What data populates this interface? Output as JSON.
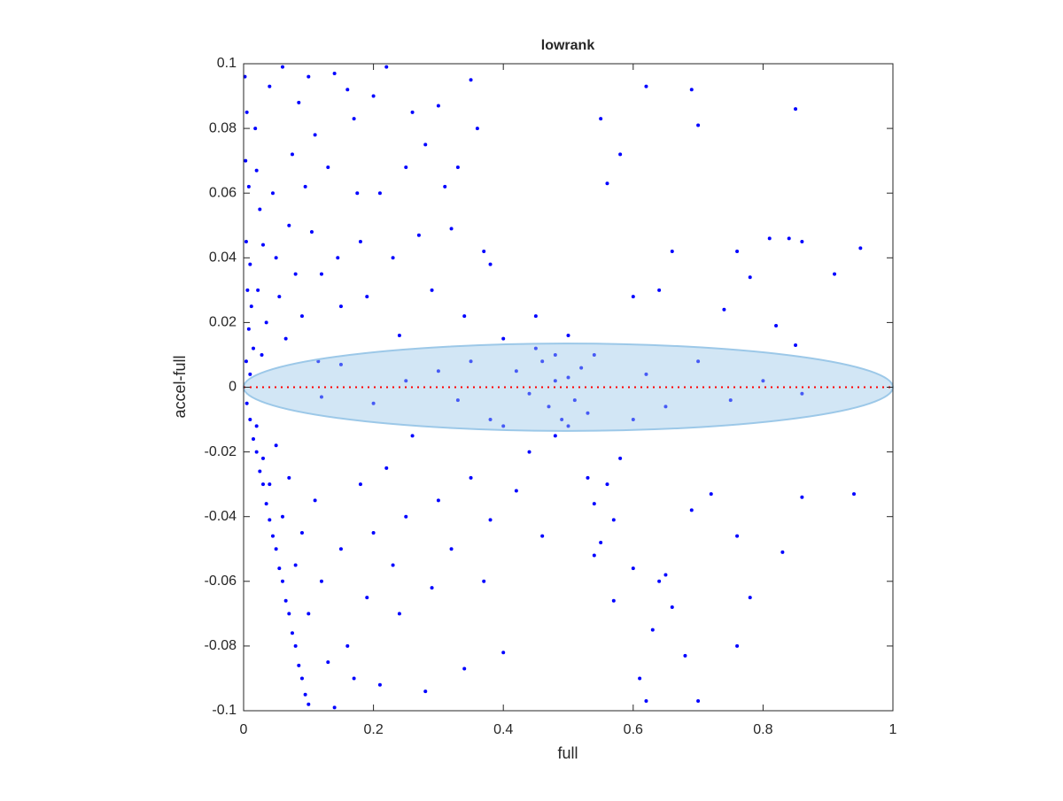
{
  "chart_data": {
    "type": "scatter",
    "title": "lowrank",
    "xlabel": "full",
    "ylabel": "accel-full",
    "xlim": [
      0,
      1
    ],
    "ylim": [
      -0.1,
      0.1
    ],
    "xticks": [
      0,
      0.2,
      0.4,
      0.6,
      0.8,
      1
    ],
    "yticks": [
      -0.1,
      -0.08,
      -0.06,
      -0.04,
      -0.02,
      0,
      0.02,
      0.04,
      0.06,
      0.08,
      0.1
    ],
    "grid": false,
    "series": [
      {
        "color": "#0000ff",
        "x": [
          0.005,
          0.01,
          0.015,
          0.02,
          0.025,
          0.03,
          0.035,
          0.04,
          0.045,
          0.05,
          0.055,
          0.06,
          0.065,
          0.07,
          0.075,
          0.08,
          0.085,
          0.09,
          0.095,
          0.1,
          0.002,
          0.005,
          0.003,
          0.008,
          0.004,
          0.01,
          0.006,
          0.012,
          0.008,
          0.015,
          0.004,
          0.01,
          0.02,
          0.018,
          0.025,
          0.03,
          0.022,
          0.035,
          0.028,
          0.04,
          0.045,
          0.05,
          0.055,
          0.06,
          0.065,
          0.07,
          0.075,
          0.08,
          0.085,
          0.09,
          0.095,
          0.1,
          0.105,
          0.11,
          0.115,
          0.12,
          0.13,
          0.14,
          0.145,
          0.15,
          0.16,
          0.17,
          0.175,
          0.18,
          0.19,
          0.2,
          0.21,
          0.22,
          0.23,
          0.24,
          0.25,
          0.26,
          0.27,
          0.28,
          0.29,
          0.3,
          0.31,
          0.32,
          0.33,
          0.34,
          0.35,
          0.36,
          0.37,
          0.38,
          0.4,
          0.45,
          0.5,
          0.55,
          0.56,
          0.58,
          0.6,
          0.62,
          0.64,
          0.66,
          0.69,
          0.7,
          0.74,
          0.76,
          0.78,
          0.81,
          0.84,
          0.85,
          0.86,
          0.91,
          0.95,
          0.82,
          0.85,
          0.42,
          0.44,
          0.46,
          0.47,
          0.48,
          0.49,
          0.5,
          0.51,
          0.52,
          0.53,
          0.48,
          0.5,
          0.45,
          0.54,
          0.3,
          0.33,
          0.35,
          0.38,
          0.25,
          0.2,
          0.15,
          0.12,
          0.62,
          0.65,
          0.7,
          0.75,
          0.8,
          0.86,
          0.6,
          0.4,
          0.02,
          0.03,
          0.04,
          0.05,
          0.06,
          0.07,
          0.08,
          0.09,
          0.1,
          0.11,
          0.12,
          0.13,
          0.14,
          0.15,
          0.16,
          0.17,
          0.18,
          0.19,
          0.2,
          0.21,
          0.22,
          0.23,
          0.24,
          0.25,
          0.26,
          0.28,
          0.29,
          0.3,
          0.32,
          0.34,
          0.35,
          0.37,
          0.38,
          0.4,
          0.42,
          0.44,
          0.46,
          0.48,
          0.53,
          0.54,
          0.55,
          0.56,
          0.57,
          0.58,
          0.6,
          0.61,
          0.62,
          0.63,
          0.64,
          0.65,
          0.66,
          0.68,
          0.69,
          0.7,
          0.72,
          0.76,
          0.76,
          0.78,
          0.83,
          0.86,
          0.94,
          0.54,
          0.57
        ],
        "values": [
          -0.005,
          -0.01,
          -0.016,
          -0.02,
          -0.026,
          -0.03,
          -0.036,
          -0.041,
          -0.046,
          -0.05,
          -0.056,
          -0.06,
          -0.066,
          -0.07,
          -0.076,
          -0.08,
          -0.086,
          -0.09,
          -0.095,
          -0.098,
          0.096,
          0.085,
          0.07,
          0.062,
          0.045,
          0.038,
          0.03,
          0.025,
          0.018,
          0.012,
          0.008,
          0.004,
          0.067,
          0.08,
          0.055,
          0.044,
          0.03,
          0.02,
          0.01,
          0.093,
          0.06,
          0.04,
          0.028,
          0.099,
          0.015,
          0.05,
          0.072,
          0.035,
          0.088,
          0.022,
          0.062,
          0.096,
          0.048,
          0.078,
          0.008,
          0.035,
          0.068,
          0.097,
          0.04,
          0.025,
          0.092,
          0.083,
          0.06,
          0.045,
          0.028,
          0.09,
          0.06,
          0.099,
          0.04,
          0.016,
          0.068,
          0.085,
          0.047,
          0.075,
          0.03,
          0.087,
          0.062,
          0.049,
          0.068,
          0.022,
          0.095,
          0.08,
          0.042,
          0.038,
          0.015,
          0.022,
          0.016,
          0.083,
          0.063,
          0.072,
          0.028,
          0.093,
          0.03,
          0.042,
          0.092,
          0.081,
          0.024,
          0.042,
          0.034,
          0.046,
          0.046,
          0.086,
          0.045,
          0.035,
          0.043,
          0.019,
          0.013,
          0.005,
          -0.002,
          0.008,
          -0.006,
          0.01,
          -0.01,
          0.003,
          -0.004,
          0.006,
          -0.008,
          0.002,
          -0.012,
          0.012,
          0.01,
          0.005,
          -0.004,
          0.008,
          -0.01,
          0.002,
          -0.005,
          0.007,
          -0.003,
          0.004,
          -0.006,
          0.008,
          -0.004,
          0.002,
          -0.002,
          -0.01,
          -0.012,
          -0.012,
          -0.022,
          -0.03,
          -0.018,
          -0.04,
          -0.028,
          -0.055,
          -0.045,
          -0.07,
          -0.035,
          -0.06,
          -0.085,
          -0.099,
          -0.05,
          -0.08,
          -0.09,
          -0.03,
          -0.065,
          -0.045,
          -0.092,
          -0.025,
          -0.055,
          -0.07,
          -0.04,
          -0.015,
          -0.094,
          -0.062,
          -0.035,
          -0.05,
          -0.087,
          -0.028,
          -0.06,
          -0.041,
          -0.082,
          -0.032,
          -0.02,
          -0.046,
          -0.015,
          -0.028,
          -0.036,
          -0.048,
          -0.03,
          -0.041,
          -0.022,
          -0.056,
          -0.09,
          -0.097,
          -0.075,
          -0.06,
          -0.058,
          -0.068,
          -0.083,
          -0.038,
          -0.097,
          -0.033,
          -0.046,
          -0.08,
          -0.065,
          -0.051,
          -0.034,
          -0.033,
          -0.052,
          -0.066
        ]
      }
    ],
    "ellipse": {
      "center": [
        0.5,
        0
      ],
      "radii": [
        0.5,
        0.0135
      ],
      "color": "#9cc8e8",
      "alpha": 0.45
    },
    "hline": {
      "y": 0,
      "color": "#ff0000"
    }
  }
}
